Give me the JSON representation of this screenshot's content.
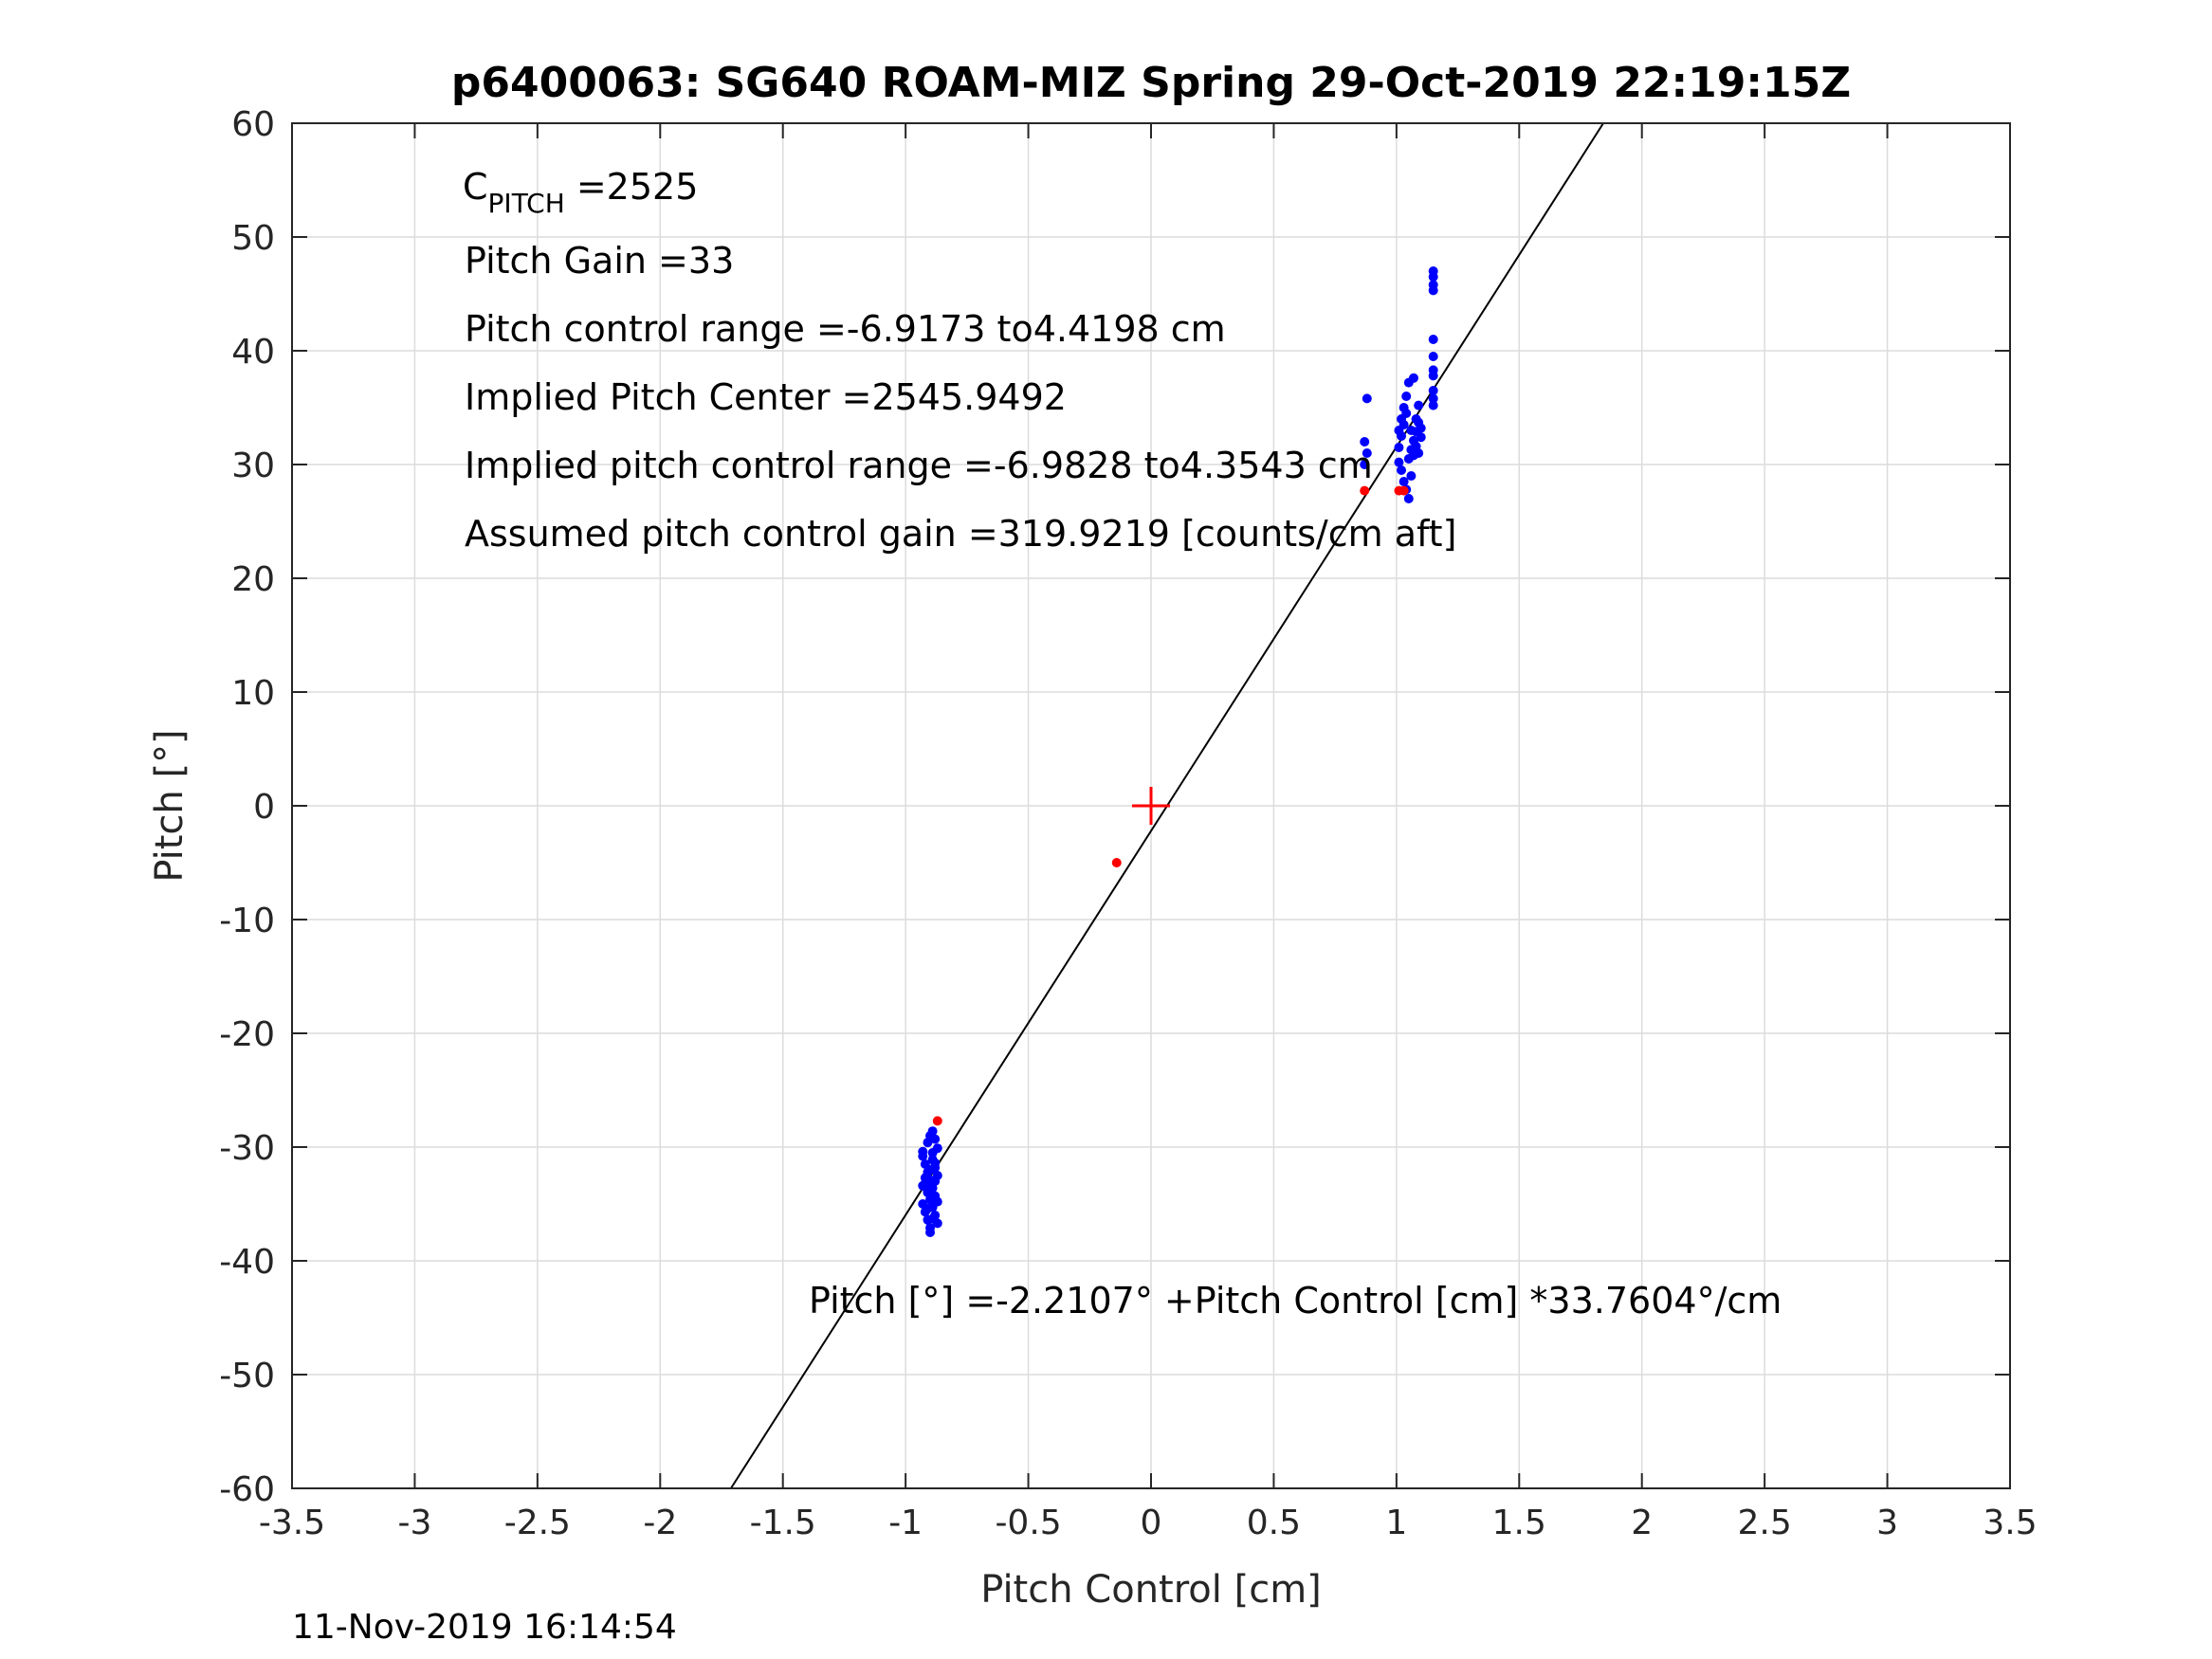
{
  "chart_data": {
    "type": "scatter",
    "title": "p6400063: SG640 ROAM-MIZ Spring 29-Oct-2019 22:19:15Z",
    "xlabel": "Pitch Control [cm]",
    "ylabel": "Pitch [°]",
    "xlim": [
      -3.5,
      3.5
    ],
    "ylim": [
      -60,
      60
    ],
    "x_ticks": [
      -3.5,
      -3,
      -2.5,
      -2,
      -1.5,
      -1,
      -0.5,
      0,
      0.5,
      1,
      1.5,
      2,
      2.5,
      3,
      3.5
    ],
    "y_ticks": [
      60,
      50,
      40,
      30,
      20,
      10,
      0,
      -10,
      -20,
      -30,
      -40,
      -50,
      -60
    ],
    "grid": true,
    "annotations": {
      "c_pitch_main": "C",
      "c_pitch_sub": "PITCH",
      "c_pitch_value": " =2525",
      "pitch_gain": "Pitch Gain =33",
      "pitch_control_range": "Pitch control range =-6.9173 to4.4198 cm",
      "implied_pitch_center": "Implied Pitch Center =2545.9492",
      "implied_pitch_control_range": "Implied pitch control range =-6.9828 to4.3543 cm",
      "assumed_pitch_control_gain": "Assumed pitch control gain =319.9219 [counts/cm aft]",
      "fit_equation": "Pitch [°] =-2.2107° +Pitch Control [cm] *33.7604°/cm"
    },
    "fit_line": {
      "intercept": -2.2107,
      "slope": 33.7604,
      "color": "#000000"
    },
    "center_marker": {
      "x": 0,
      "y": 0,
      "color": "#ff0000"
    },
    "series": [
      {
        "color": "#0000ff",
        "points": [
          [
            -0.93,
            -30.8
          ],
          [
            -0.92,
            -31.5
          ],
          [
            -0.91,
            -32.2
          ],
          [
            -0.9,
            -32.9
          ],
          [
            -0.89,
            -33.6
          ],
          [
            -0.88,
            -34.3
          ],
          [
            -0.93,
            -35.0
          ],
          [
            -0.92,
            -35.7
          ],
          [
            -0.91,
            -36.4
          ],
          [
            -0.9,
            -37.1
          ],
          [
            -0.89,
            -31.1
          ],
          [
            -0.88,
            -31.8
          ],
          [
            -0.87,
            -32.5
          ],
          [
            -0.92,
            -33.2
          ],
          [
            -0.91,
            -33.9
          ],
          [
            -0.9,
            -34.6
          ],
          [
            -0.89,
            -35.3
          ],
          [
            -0.88,
            -36.0
          ],
          [
            -0.87,
            -36.7
          ],
          [
            -0.93,
            -30.4
          ],
          [
            -0.91,
            -29.6
          ],
          [
            -0.9,
            -29.0
          ],
          [
            -0.89,
            -28.6
          ],
          [
            -0.88,
            -29.3
          ],
          [
            -0.87,
            -30.1
          ],
          [
            -0.9,
            -32.0
          ],
          [
            -0.91,
            -34.0
          ],
          [
            -0.89,
            -36.3
          ],
          [
            -0.88,
            -33.0
          ],
          [
            -0.92,
            -32.7
          ],
          [
            -0.9,
            -37.5
          ],
          [
            -0.87,
            -34.8
          ],
          [
            -0.89,
            -30.5
          ],
          [
            -0.93,
            -33.4
          ],
          [
            -0.88,
            -31.4
          ],
          [
            -0.91,
            -35.4
          ],
          [
            0.87,
            30.0
          ],
          [
            0.88,
            31.0
          ],
          [
            0.87,
            32.0
          ],
          [
            0.88,
            35.8
          ],
          [
            1.01,
            31.5
          ],
          [
            1.02,
            32.5
          ],
          [
            1.03,
            33.5
          ],
          [
            1.04,
            34.5
          ],
          [
            1.05,
            30.5
          ],
          [
            1.06,
            31.3
          ],
          [
            1.07,
            32.1
          ],
          [
            1.08,
            32.9
          ],
          [
            1.09,
            33.7
          ],
          [
            1.01,
            30.2
          ],
          [
            1.02,
            29.5
          ],
          [
            1.03,
            28.5
          ],
          [
            1.04,
            27.8
          ],
          [
            1.05,
            27.0
          ],
          [
            1.06,
            29.0
          ],
          [
            1.07,
            30.8
          ],
          [
            1.08,
            34.0
          ],
          [
            1.09,
            35.2
          ],
          [
            1.1,
            33.2
          ],
          [
            1.04,
            36.0
          ],
          [
            1.05,
            37.2
          ],
          [
            1.07,
            37.6
          ],
          [
            1.03,
            35.0
          ],
          [
            1.02,
            34.0
          ],
          [
            1.06,
            33.0
          ],
          [
            1.01,
            33.0
          ],
          [
            1.08,
            31.6
          ],
          [
            1.09,
            31.0
          ],
          [
            1.1,
            32.4
          ],
          [
            1.15,
            47.0
          ],
          [
            1.15,
            46.5
          ],
          [
            1.15,
            45.8
          ],
          [
            1.15,
            45.3
          ],
          [
            1.15,
            41.0
          ],
          [
            1.15,
            39.5
          ],
          [
            1.15,
            38.3
          ],
          [
            1.15,
            37.8
          ],
          [
            1.15,
            36.5
          ],
          [
            1.15,
            35.8
          ],
          [
            1.15,
            35.2
          ]
        ]
      },
      {
        "color": "#ff0000",
        "points": [
          [
            -0.14,
            -5.0
          ],
          [
            0.87,
            27.7
          ],
          [
            1.01,
            27.7
          ],
          [
            1.03,
            27.7
          ],
          [
            -0.87,
            -27.7
          ]
        ]
      }
    ]
  },
  "footer_timestamp": "11-Nov-2019 16:14:54"
}
